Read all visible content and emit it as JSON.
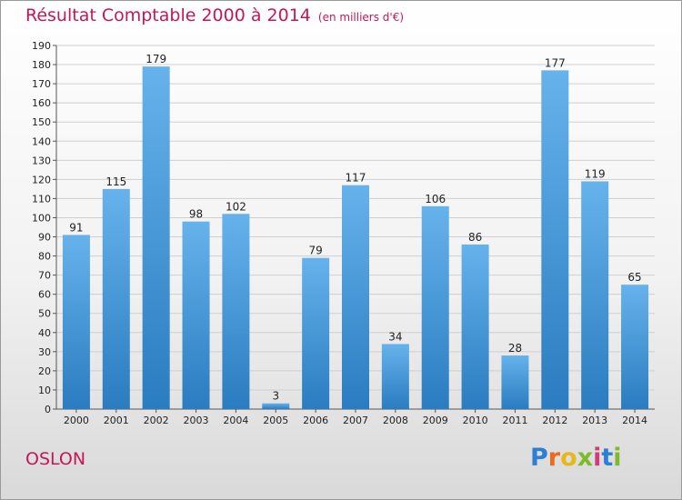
{
  "title": "Résultat Comptable 2000 à 2014",
  "subtitle": "(en milliers d'€)",
  "commune": "OSLON",
  "logo": {
    "letters": [
      "P",
      "r",
      "o",
      "x",
      "i",
      "t",
      "i"
    ],
    "colors": [
      "#2b7fd4",
      "#ec6a1c",
      "#e8b81a",
      "#7dbb2b",
      "#d23a7c",
      "#2b7fd4",
      "#7dbb2b"
    ]
  },
  "colors": {
    "bar_top": "#66b2ec",
    "bar_bottom": "#2a7cc0",
    "title": "#c2185b"
  },
  "chart_data": {
    "type": "bar",
    "categories": [
      "2000",
      "2001",
      "2002",
      "2003",
      "2004",
      "2005",
      "2006",
      "2007",
      "2008",
      "2009",
      "2010",
      "2011",
      "2012",
      "2013",
      "2014"
    ],
    "values": [
      91,
      115,
      179,
      98,
      102,
      3,
      79,
      117,
      34,
      106,
      86,
      28,
      177,
      119,
      65
    ],
    "ylim": [
      0,
      190
    ],
    "yticks": [
      0,
      10,
      20,
      30,
      40,
      50,
      60,
      70,
      80,
      90,
      100,
      110,
      120,
      130,
      140,
      150,
      160,
      170,
      180,
      190
    ],
    "grid": true
  }
}
